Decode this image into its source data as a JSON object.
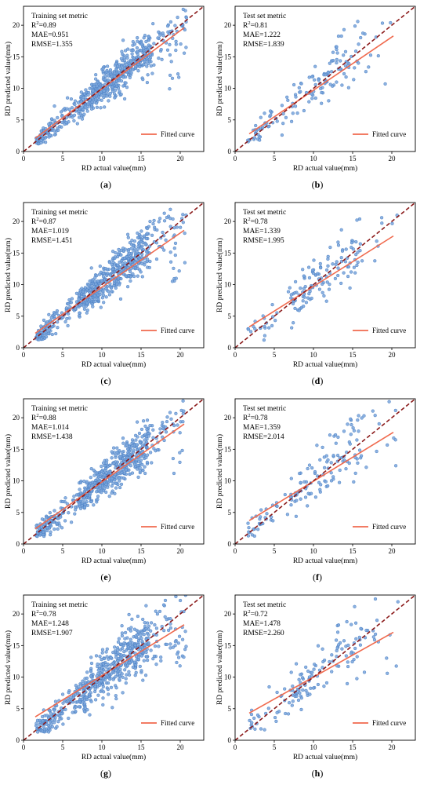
{
  "colors": {
    "points": "#7aa6dc",
    "points_edge": "#4a7fc4",
    "fit": "#f06a4e",
    "identity": "#8b1a1a"
  },
  "chart_data": [
    {
      "type": "scatter",
      "panel": "(a)",
      "caption_letter": "a",
      "metric_title": "Training set metric",
      "r2_label": "R",
      "r2_value": "=0.89",
      "mae": "MAE=0.951",
      "rmse": "RMSE=1.355",
      "legend": "Fitted curve",
      "xlabel": "RD actual value(mm)",
      "ylabel": "RD predicted value(mm)",
      "xlim": [
        0,
        23
      ],
      "ylim": [
        0,
        23
      ],
      "xticks": [
        0,
        5,
        10,
        15,
        20
      ],
      "yticks": [
        0,
        5,
        10,
        15,
        20
      ],
      "fit": {
        "x": [
          1.5,
          20.5
        ],
        "y": [
          2.1,
          19.6
        ]
      },
      "n_points": 620,
      "noise": 1.3,
      "seed": 11
    },
    {
      "type": "scatter",
      "panel": "(b)",
      "caption_letter": "b",
      "metric_title": "Test set metric",
      "r2_label": "R",
      "r2_value": "=0.81",
      "mae": "MAE=1.222",
      "rmse": "RMSE=1.839",
      "legend": "Fitted curve",
      "xlabel": "RD actual value(mm)",
      "ylabel": "RD predicted value(mm)",
      "xlim": [
        0,
        23
      ],
      "ylim": [
        0,
        23
      ],
      "xticks": [
        0,
        5,
        10,
        15,
        20
      ],
      "yticks": [
        0,
        5,
        10,
        15,
        20
      ],
      "fit": {
        "x": [
          1.8,
          20.2
        ],
        "y": [
          2.8,
          18.3
        ]
      },
      "n_points": 150,
      "noise": 1.7,
      "seed": 23
    },
    {
      "type": "scatter",
      "panel": "(c)",
      "caption_letter": "c",
      "metric_title": "Training set metric",
      "r2_label": "R",
      "r2_value": "=0.87",
      "mae": "MAE=1.019",
      "rmse": "RMSE=1.451",
      "legend": "Fitted curve",
      "xlabel": "RD actual value(mm)",
      "ylabel": "RD predicted value(mm)",
      "xlim": [
        0,
        23
      ],
      "ylim": [
        0,
        23
      ],
      "xticks": [
        0,
        5,
        10,
        15,
        20
      ],
      "yticks": [
        0,
        5,
        10,
        15,
        20
      ],
      "fit": {
        "x": [
          1.5,
          20.5
        ],
        "y": [
          2.3,
          18.6
        ]
      },
      "n_points": 620,
      "noise": 1.4,
      "seed": 37
    },
    {
      "type": "scatter",
      "panel": "(d)",
      "caption_letter": "d",
      "metric_title": "Test set metric",
      "r2_label": "R",
      "r2_value": "=0.78",
      "mae": "MAE=1.339",
      "rmse": "RMSE=1.995",
      "legend": "Fitted curve",
      "xlabel": "RD actual value(mm)",
      "ylabel": "RD predicted value(mm)",
      "xlim": [
        0,
        23
      ],
      "ylim": [
        0,
        23
      ],
      "xticks": [
        0,
        5,
        10,
        15,
        20
      ],
      "yticks": [
        0,
        5,
        10,
        15,
        20
      ],
      "fit": {
        "x": [
          1.8,
          20.2
        ],
        "y": [
          3.3,
          17.7
        ]
      },
      "n_points": 150,
      "noise": 1.9,
      "seed": 41
    },
    {
      "type": "scatter",
      "panel": "(e)",
      "caption_letter": "e",
      "metric_title": "Training set metric",
      "r2_label": "R",
      "r2_value": "=0.88",
      "mae": "MAE=1.014",
      "rmse": "RMSE=1.438",
      "legend": "Fitted curve",
      "xlabel": "RD actual value(mm)",
      "ylabel": "RD predicted value(mm)",
      "xlim": [
        0,
        23
      ],
      "ylim": [
        0,
        23
      ],
      "xticks": [
        0,
        5,
        10,
        15,
        20
      ],
      "yticks": [
        0,
        5,
        10,
        15,
        20
      ],
      "fit": {
        "x": [
          1.5,
          20.5
        ],
        "y": [
          2.4,
          19.0
        ]
      },
      "n_points": 620,
      "noise": 1.4,
      "seed": 53
    },
    {
      "type": "scatter",
      "panel": "(f)",
      "caption_letter": "f",
      "metric_title": "Test set metric",
      "r2_label": "R",
      "r2_value": "=0.78",
      "mae": "MAE=1.359",
      "rmse": "RMSE=2.014",
      "legend": "Fitted curve",
      "xlabel": "RD actual value(mm)",
      "ylabel": "RD predicted value(mm)",
      "xlim": [
        0,
        23
      ],
      "ylim": [
        0,
        23
      ],
      "xticks": [
        0,
        5,
        10,
        15,
        20
      ],
      "yticks": [
        0,
        5,
        10,
        15,
        20
      ],
      "fit": {
        "x": [
          1.8,
          20.2
        ],
        "y": [
          3.7,
          17.7
        ]
      },
      "n_points": 150,
      "noise": 1.9,
      "seed": 67
    },
    {
      "type": "scatter",
      "panel": "(g)",
      "caption_letter": "g",
      "metric_title": "Training set metric",
      "r2_label": "R",
      "r2_value": "=0.78",
      "mae": "MAE=1.248",
      "rmse": "RMSE=1.907",
      "legend": "Fitted curve",
      "xlabel": "RD actual value(mm)",
      "ylabel": "RD predicted value(mm)",
      "xlim": [
        0,
        23
      ],
      "ylim": [
        0,
        23
      ],
      "xticks": [
        0,
        5,
        10,
        15,
        20
      ],
      "yticks": [
        0,
        5,
        10,
        15,
        20
      ],
      "fit": {
        "x": [
          1.5,
          20.5
        ],
        "y": [
          3.7,
          18.3
        ]
      },
      "n_points": 620,
      "noise": 1.8,
      "seed": 79
    },
    {
      "type": "scatter",
      "panel": "(h)",
      "caption_letter": "h",
      "metric_title": "Test set metric",
      "r2_label": "R",
      "r2_value": "=0.72",
      "mae": "MAE=1.478",
      "rmse": "RMSE=2.260",
      "legend": "Fitted curve",
      "xlabel": "RD actual value(mm)",
      "ylabel": "RD predicted value(mm)",
      "xlim": [
        0,
        23
      ],
      "ylim": [
        0,
        23
      ],
      "xticks": [
        0,
        5,
        10,
        15,
        20
      ],
      "yticks": [
        0,
        5,
        10,
        15,
        20
      ],
      "fit": {
        "x": [
          1.8,
          20.2
        ],
        "y": [
          4.3,
          17.1
        ]
      },
      "n_points": 150,
      "noise": 2.1,
      "seed": 97
    }
  ]
}
